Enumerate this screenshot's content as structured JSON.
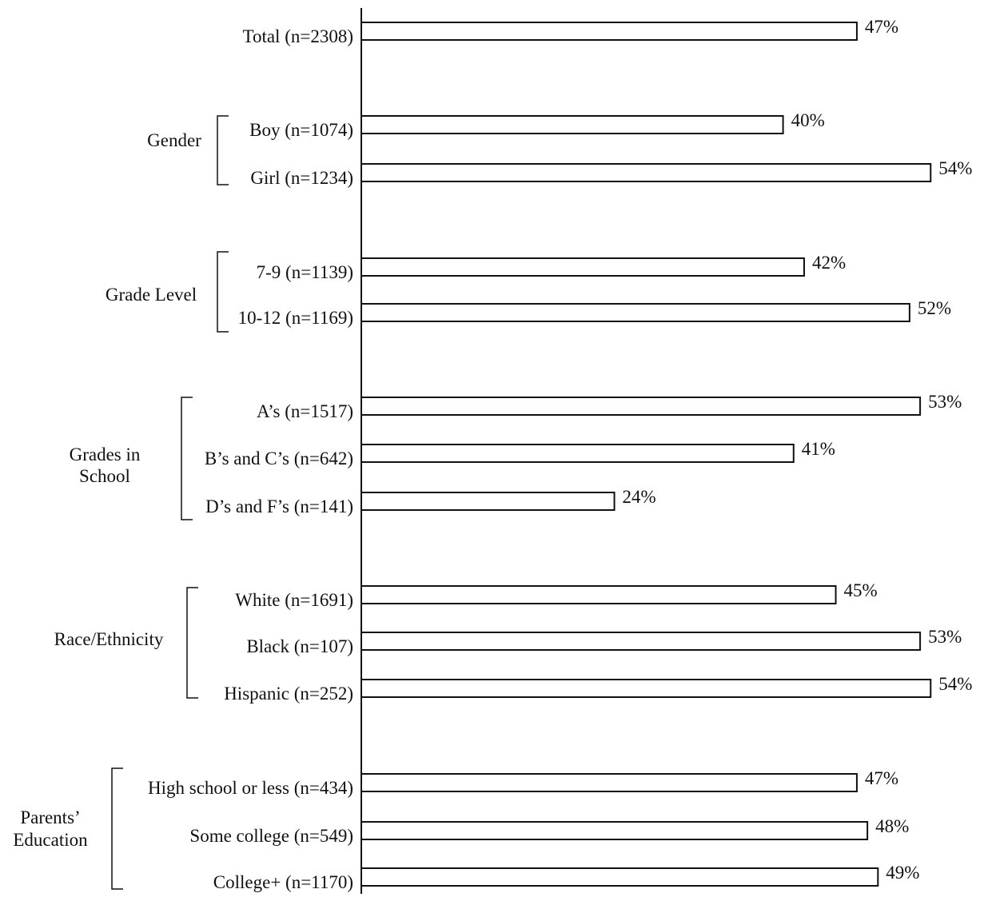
{
  "chart_data": {
    "type": "bar",
    "orientation": "horizontal",
    "xlim": [
      0,
      54
    ],
    "rows": [
      {
        "group": "",
        "label": "Total (n=2308)",
        "value": 47,
        "value_label": "47%"
      },
      {
        "group": "Gender",
        "label": "Boy (n=1074)",
        "value": 40,
        "value_label": "40%"
      },
      {
        "group": "Gender",
        "label": "Girl (n=1234)",
        "value": 54,
        "value_label": "54%"
      },
      {
        "group": "Grade Level",
        "label": "7-9 (n=1139)",
        "value": 42,
        "value_label": "42%"
      },
      {
        "group": "Grade Level",
        "label": "10-12 (n=1169)",
        "value": 52,
        "value_label": "52%"
      },
      {
        "group": "Grades in School",
        "label": "A’s (n=1517)",
        "value": 53,
        "value_label": "53%"
      },
      {
        "group": "Grades in School",
        "label": "B’s and C’s (n=642)",
        "value": 41,
        "value_label": "41%"
      },
      {
        "group": "Grades in School",
        "label": "D’s and F’s (n=141)",
        "value": 24,
        "value_label": "24%"
      },
      {
        "group": "Race/Ethnicity",
        "label": "White (n=1691)",
        "value": 45,
        "value_label": "45%"
      },
      {
        "group": "Race/Ethnicity",
        "label": "Black (n=107)",
        "value": 53,
        "value_label": "53%"
      },
      {
        "group": "Race/Ethnicity",
        "label": "Hispanic (n=252)",
        "value": 54,
        "value_label": "54%"
      },
      {
        "group": "Parents’ Education",
        "label": "High school or less (n=434)",
        "value": 47,
        "value_label": "47%"
      },
      {
        "group": "Parents’ Education",
        "label": "Some college (n=549)",
        "value": 48,
        "value_label": "48%"
      },
      {
        "group": "Parents’ Education",
        "label": "College+ (n=1170)",
        "value": 49,
        "value_label": "49%"
      }
    ],
    "groups": [
      {
        "name": "Gender",
        "lines": [
          "Gender"
        ]
      },
      {
        "name": "Grade Level",
        "lines": [
          "Grade Level"
        ]
      },
      {
        "name": "Grades in School",
        "lines": [
          "Grades in",
          "School"
        ]
      },
      {
        "name": "Race/Ethnicity",
        "lines": [
          "Race/Ethnicity"
        ]
      },
      {
        "name": "Parents’ Education",
        "lines": [
          "Parents’",
          "Education"
        ]
      }
    ],
    "colors": {
      "bar_fill": "#ffffff",
      "bar_stroke": "#111111",
      "text": "#111111"
    },
    "grid": false,
    "legend": "none"
  }
}
